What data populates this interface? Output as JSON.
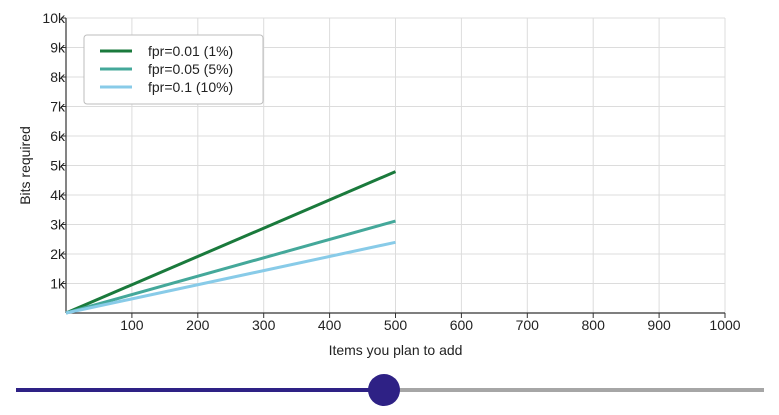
{
  "chart_data": {
    "type": "line",
    "xlabel": "Items you plan to add",
    "ylabel": "Bits required",
    "xlim": [
      0,
      1000
    ],
    "ylim": [
      0,
      10000
    ],
    "x_ticks": [
      100,
      200,
      300,
      400,
      500,
      600,
      700,
      800,
      900,
      1000
    ],
    "x_tick_labels": [
      "100",
      "200",
      "300",
      "400",
      "500",
      "600",
      "700",
      "800",
      "900",
      "1000"
    ],
    "y_ticks": [
      1000,
      2000,
      3000,
      4000,
      5000,
      6000,
      7000,
      8000,
      9000,
      10000
    ],
    "y_tick_labels": [
      "1k",
      "2k",
      "3k",
      "4k",
      "5k",
      "6k",
      "7k",
      "8k",
      "9k",
      "10k"
    ],
    "grid": true,
    "legend_position": "top-left",
    "series": [
      {
        "name": "fpr=0.01 (1%)",
        "color": "#1a7a3c",
        "x": [
          0,
          500
        ],
        "y": [
          0,
          4793
        ]
      },
      {
        "name": "fpr=0.05 (5%)",
        "color": "#44a89a",
        "x": [
          0,
          500
        ],
        "y": [
          0,
          3118
        ]
      },
      {
        "name": "fpr=0.1 (10%)",
        "color": "#88cbe8",
        "x": [
          0,
          500
        ],
        "y": [
          0,
          2396
        ]
      }
    ]
  },
  "slider": {
    "value": 500,
    "min": 0,
    "max": 1000,
    "fill_color": "#2e2185",
    "track_color": "#a6a6a6"
  }
}
